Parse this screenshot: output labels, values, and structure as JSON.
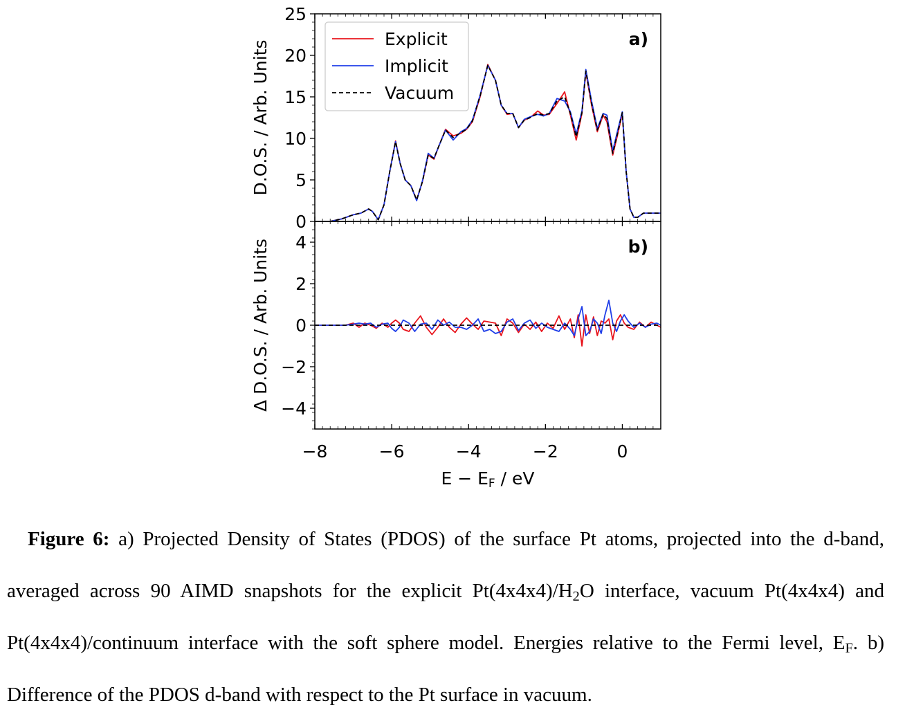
{
  "chart_data": [
    {
      "panel": "a)",
      "type": "line",
      "ylabel": "D.O.S. / Arb. Units",
      "xlim": [
        -8,
        1
      ],
      "ylim": [
        0,
        25
      ],
      "yticks": [
        0,
        5,
        10,
        15,
        20,
        25
      ],
      "legend": {
        "placement": "top-left"
      },
      "series": [
        {
          "name": "Explicit",
          "color": "#e8141c",
          "style": "solid",
          "x": [
            -8,
            -7.6,
            -7.3,
            -7.0,
            -6.8,
            -6.6,
            -6.5,
            -6.35,
            -6.2,
            -6.05,
            -5.9,
            -5.78,
            -5.65,
            -5.5,
            -5.35,
            -5.2,
            -5.05,
            -4.9,
            -4.78,
            -4.6,
            -4.4,
            -4.2,
            -4.05,
            -3.9,
            -3.7,
            -3.5,
            -3.3,
            -3.15,
            -3.0,
            -2.85,
            -2.7,
            -2.55,
            -2.4,
            -2.2,
            -2.05,
            -1.9,
            -1.7,
            -1.5,
            -1.35,
            -1.2,
            -1.05,
            -0.95,
            -0.8,
            -0.65,
            -0.5,
            -0.4,
            -0.25,
            -0.12,
            0.0,
            0.1,
            0.2,
            0.3,
            0.4,
            0.55,
            0.7,
            0.85,
            1.0
          ],
          "y": [
            0,
            0,
            0.3,
            0.8,
            1.0,
            1.5,
            1.2,
            0.2,
            2.0,
            6.0,
            9.7,
            7.0,
            5.0,
            4.3,
            2.6,
            4.8,
            8.0,
            7.5,
            9.0,
            11.1,
            10.3,
            10.6,
            11.1,
            12.0,
            15.0,
            18.9,
            17.0,
            14.0,
            12.9,
            13.0,
            11.3,
            12.2,
            12.5,
            13.3,
            12.8,
            12.9,
            14.2,
            15.6,
            12.8,
            9.8,
            13.0,
            18.0,
            14.0,
            10.8,
            12.8,
            12.0,
            8.0,
            10.5,
            13.0,
            6.0,
            1.5,
            0.5,
            0.5,
            1.0,
            1.0,
            1.0,
            1.0
          ]
        },
        {
          "name": "Implicit",
          "color": "#1f3ee8",
          "style": "solid",
          "x": [
            -8,
            -7.6,
            -7.3,
            -7.0,
            -6.8,
            -6.6,
            -6.5,
            -6.35,
            -6.2,
            -6.05,
            -5.9,
            -5.78,
            -5.65,
            -5.5,
            -5.35,
            -5.2,
            -5.05,
            -4.9,
            -4.78,
            -4.6,
            -4.4,
            -4.2,
            -4.05,
            -3.9,
            -3.7,
            -3.5,
            -3.3,
            -3.15,
            -3.0,
            -2.85,
            -2.7,
            -2.55,
            -2.4,
            -2.2,
            -2.05,
            -1.9,
            -1.7,
            -1.5,
            -1.35,
            -1.2,
            -1.05,
            -0.95,
            -0.8,
            -0.65,
            -0.5,
            -0.4,
            -0.25,
            -0.12,
            0.0,
            0.1,
            0.2,
            0.3,
            0.4,
            0.55,
            0.7,
            0.85,
            1.0
          ],
          "y": [
            0,
            0,
            0.3,
            0.8,
            1.0,
            1.5,
            1.2,
            0.2,
            2.0,
            6.0,
            9.6,
            7.0,
            5.0,
            4.3,
            2.5,
            4.9,
            8.2,
            7.6,
            9.0,
            11.0,
            9.8,
            10.8,
            11.2,
            12.2,
            15.2,
            18.8,
            17.0,
            14.0,
            13.0,
            13.0,
            11.3,
            12.3,
            12.6,
            12.9,
            12.7,
            13.0,
            14.8,
            14.5,
            13.2,
            10.5,
            13.3,
            18.3,
            14.5,
            11.2,
            13.0,
            12.8,
            8.5,
            11.0,
            13.2,
            6.0,
            1.5,
            0.5,
            0.5,
            1.0,
            1.0,
            1.0,
            1.0
          ]
        },
        {
          "name": "Vacuum",
          "color": "#000000",
          "style": "dashed",
          "x": [
            -8,
            -7.6,
            -7.3,
            -7.0,
            -6.8,
            -6.6,
            -6.5,
            -6.35,
            -6.2,
            -6.05,
            -5.9,
            -5.78,
            -5.65,
            -5.5,
            -5.35,
            -5.2,
            -5.05,
            -4.9,
            -4.78,
            -4.6,
            -4.4,
            -4.2,
            -4.05,
            -3.9,
            -3.7,
            -3.5,
            -3.3,
            -3.15,
            -3.0,
            -2.85,
            -2.7,
            -2.55,
            -2.4,
            -2.2,
            -2.05,
            -1.9,
            -1.7,
            -1.5,
            -1.35,
            -1.2,
            -1.05,
            -0.95,
            -0.8,
            -0.65,
            -0.5,
            -0.4,
            -0.25,
            -0.12,
            0.0,
            0.1,
            0.2,
            0.3,
            0.4,
            0.55,
            0.7,
            0.85,
            1.0
          ],
          "y": [
            0,
            0,
            0.3,
            0.8,
            1.0,
            1.5,
            1.2,
            0.2,
            2.0,
            6.0,
            9.6,
            7.0,
            5.0,
            4.3,
            2.6,
            4.8,
            8.0,
            7.6,
            9.0,
            11.0,
            10.1,
            10.7,
            11.1,
            12.1,
            15.1,
            18.8,
            17.0,
            14.0,
            13.0,
            13.0,
            11.3,
            12.2,
            12.5,
            13.0,
            12.8,
            13.0,
            14.5,
            15.0,
            13.0,
            10.2,
            13.1,
            18.1,
            14.2,
            11.0,
            12.9,
            12.4,
            8.2,
            10.7,
            13.1,
            6.0,
            1.5,
            0.5,
            0.5,
            1.0,
            1.0,
            1.0,
            1.0
          ]
        }
      ]
    },
    {
      "panel": "b)",
      "type": "line",
      "ylabel": "Δ D.O.S. / Arb. Units",
      "xlabel": "E − E",
      "xlabel_sub": "F",
      "xlabel_unit": " / eV",
      "xlim": [
        -8,
        1
      ],
      "ylim": [
        -5,
        5
      ],
      "xticks": [
        -8,
        -6,
        -4,
        -2,
        0
      ],
      "xtick_labels": [
        "−8",
        "−6",
        "−4",
        "−2",
        "0"
      ],
      "yticks": [
        -4,
        -2,
        0,
        2,
        4
      ],
      "ytick_labels": [
        "−4",
        "−2",
        "0",
        "2",
        "4"
      ],
      "series": [
        {
          "name": "Explicit",
          "color": "#e8141c",
          "style": "solid",
          "x": [
            -8,
            -7.2,
            -7.0,
            -6.85,
            -6.7,
            -6.55,
            -6.4,
            -6.25,
            -6.1,
            -6.0,
            -5.9,
            -5.8,
            -5.7,
            -5.55,
            -5.4,
            -5.25,
            -5.1,
            -4.95,
            -4.8,
            -4.65,
            -4.5,
            -4.35,
            -4.2,
            -4.05,
            -3.9,
            -3.75,
            -3.6,
            -3.45,
            -3.3,
            -3.15,
            -3.0,
            -2.85,
            -2.7,
            -2.55,
            -2.4,
            -2.25,
            -2.1,
            -1.95,
            -1.8,
            -1.65,
            -1.5,
            -1.35,
            -1.25,
            -1.15,
            -1.05,
            -0.95,
            -0.85,
            -0.75,
            -0.65,
            -0.55,
            -0.45,
            -0.35,
            -0.25,
            -0.15,
            -0.05,
            0.05,
            0.15,
            0.3,
            0.45,
            0.6,
            0.75,
            0.9,
            1.0
          ],
          "y": [
            0,
            0,
            0.1,
            -0.1,
            0.1,
            0,
            -0.15,
            0.1,
            -0.1,
            0.1,
            0.25,
            0.1,
            -0.2,
            -0.3,
            0.1,
            0.45,
            -0.1,
            -0.45,
            -0.1,
            0.3,
            -0.1,
            -0.35,
            0.05,
            0.35,
            0.05,
            -0.2,
            0.2,
            0.15,
            0.1,
            -0.5,
            0.3,
            0.1,
            -0.35,
            0.05,
            -0.2,
            0.15,
            -0.3,
            0.1,
            -0.15,
            0.45,
            -0.2,
            0.3,
            -0.6,
            0.5,
            -1.0,
            0.5,
            -0.4,
            0.4,
            -0.5,
            0.2,
            0.1,
            0.3,
            -0.7,
            0.2,
            0.5,
            0.1,
            -0.1,
            -0.2,
            0.15,
            -0.1,
            0.15,
            0,
            -0.1
          ]
        },
        {
          "name": "Implicit",
          "color": "#1f3ee8",
          "style": "solid",
          "x": [
            -8,
            -7.2,
            -7.0,
            -6.85,
            -6.7,
            -6.55,
            -6.4,
            -6.25,
            -6.1,
            -6.0,
            -5.9,
            -5.8,
            -5.7,
            -5.55,
            -5.4,
            -5.25,
            -5.1,
            -4.95,
            -4.8,
            -4.65,
            -4.5,
            -4.35,
            -4.2,
            -4.05,
            -3.9,
            -3.75,
            -3.6,
            -3.45,
            -3.3,
            -3.15,
            -3.0,
            -2.85,
            -2.7,
            -2.55,
            -2.4,
            -2.25,
            -2.1,
            -1.95,
            -1.8,
            -1.65,
            -1.5,
            -1.35,
            -1.25,
            -1.15,
            -1.05,
            -0.95,
            -0.85,
            -0.75,
            -0.65,
            -0.55,
            -0.45,
            -0.35,
            -0.25,
            -0.15,
            -0.05,
            0.05,
            0.15,
            0.3,
            0.45,
            0.6,
            0.75,
            0.9,
            1.0
          ],
          "y": [
            0,
            0,
            0.05,
            0.1,
            0.05,
            0.1,
            -0.1,
            0.05,
            0.1,
            -0.15,
            -0.3,
            -0.1,
            0.25,
            0.1,
            -0.3,
            0.05,
            0.1,
            -0.2,
            0.25,
            0,
            0.15,
            -0.1,
            -0.1,
            -0.2,
            0,
            0.3,
            -0.3,
            -0.2,
            -0.4,
            -0.3,
            0.15,
            0.3,
            -0.25,
            0.1,
            0.25,
            -0.15,
            0.1,
            -0.1,
            -0.2,
            -0.3,
            0.1,
            -0.2,
            -0.5,
            0.3,
            0.9,
            -0.5,
            -0.3,
            0.3,
            0.1,
            -0.4,
            0.5,
            1.2,
            0.1,
            -0.3,
            0.2,
            0.5,
            0.2,
            -0.1,
            0.1,
            -0.1,
            0.05,
            0.1,
            0
          ]
        },
        {
          "name": "Vacuum",
          "color": "#000000",
          "style": "dashed",
          "x": [
            -8,
            1
          ],
          "y": [
            0,
            0
          ]
        }
      ]
    }
  ],
  "caption": {
    "figure_label": "Figure 6:",
    "segments": [
      " a) Projected Density of States (PDOS) of the surface Pt atoms, projected into the d-band, averaged across 90 AIMD snapshots for the explicit Pt(4x4x4)/H",
      "2",
      "O interface, vacuum Pt(4x4x4) and Pt(4x4x4)/continuum interface with the soft sphere model. Energies relative to the Fermi level, E",
      "F",
      ". b) Difference of the PDOS d-band with respect to the Pt surface in vacuum."
    ]
  }
}
